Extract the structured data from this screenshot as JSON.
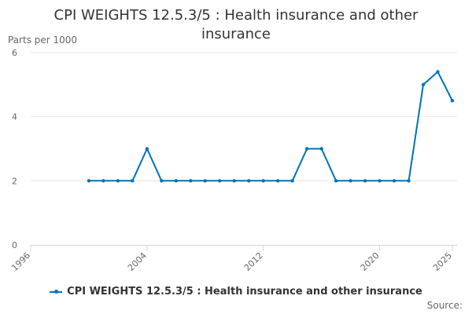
{
  "title": "CPI WEIGHTS 12.5.3/5 : Health insurance and other insurance",
  "source_label": "Source:",
  "colors": {
    "series": "#0072b8",
    "grid": "#e6e6e6",
    "axis": "#ccd6eb",
    "tick_text": "#666666"
  },
  "chart_data": {
    "type": "line",
    "title": "CPI WEIGHTS 12.5.3/5 : Health insurance and other insurance",
    "ylabel": "Parts per 1000",
    "xlabel": "",
    "xlim": [
      1996,
      2025
    ],
    "ylim": [
      0,
      6
    ],
    "x_ticks": [
      1996,
      2004,
      2012,
      2020,
      2025
    ],
    "y_ticks": [
      0,
      2,
      4,
      6
    ],
    "grid": true,
    "legend_position": "bottom",
    "series": [
      {
        "name": "CPI WEIGHTS 12.5.3/5 : Health insurance and other insurance",
        "x": [
          2000,
          2001,
          2002,
          2003,
          2004,
          2005,
          2006,
          2007,
          2008,
          2009,
          2010,
          2011,
          2012,
          2013,
          2014,
          2015,
          2016,
          2017,
          2018,
          2019,
          2020,
          2021,
          2022,
          2023,
          2024,
          2025
        ],
        "y": [
          2,
          2,
          2,
          2,
          3,
          2,
          2,
          2,
          2,
          2,
          2,
          2,
          2,
          2,
          2,
          3,
          3,
          2,
          2,
          2,
          2,
          2,
          2,
          5,
          5.4,
          4.5
        ]
      }
    ]
  }
}
